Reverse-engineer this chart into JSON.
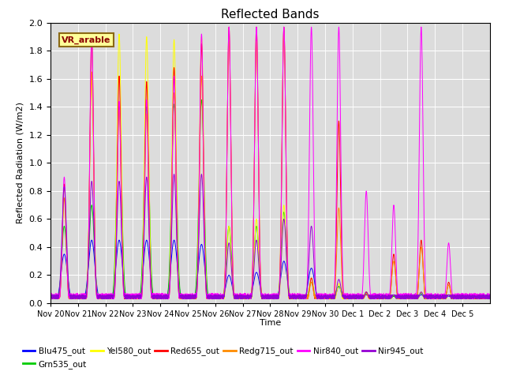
{
  "title": "Reflected Bands",
  "xlabel": "Time",
  "ylabel": "Reflected Radiation (W/m2)",
  "ylim": [
    0,
    2.0
  ],
  "annotation_text": "VR_arable",
  "annotation_color": "#8B0000",
  "annotation_bg": "#FFFF99",
  "annotation_border": "#8B6914",
  "series": [
    {
      "name": "Blu475_out",
      "color": "#0000FF"
    },
    {
      "name": "Grn535_out",
      "color": "#00CC00"
    },
    {
      "name": "Yel580_out",
      "color": "#FFFF00"
    },
    {
      "name": "Red655_out",
      "color": "#FF0000"
    },
    {
      "name": "Redg715_out",
      "color": "#FF8C00"
    },
    {
      "name": "Nir840_out",
      "color": "#FF00FF"
    },
    {
      "name": "Nir945_out",
      "color": "#9400D3"
    }
  ],
  "num_days": 16,
  "background_color": "#DCDCDC",
  "tick_labels": [
    "Nov 20",
    "Nov 21",
    "Nov 22",
    "Nov 23",
    "Nov 24",
    "Nov 25",
    "Nov 26",
    "Nov 27",
    "Nov 28",
    "Nov 29",
    "Nov 30",
    "Dec 1",
    "Dec 2",
    "Dec 3",
    "Dec 4",
    "Dec 5"
  ]
}
